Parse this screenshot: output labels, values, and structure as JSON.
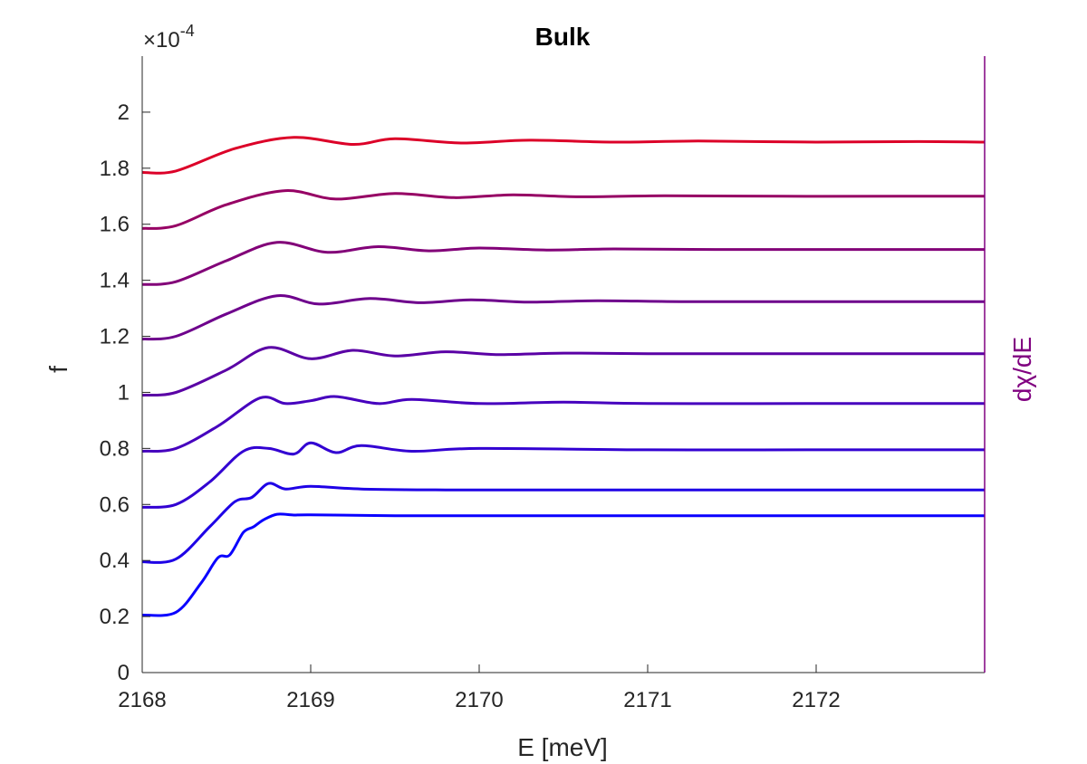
{
  "chart_data": {
    "type": "line",
    "title": "Bulk",
    "xlabel": "E [meV]",
    "ylabel": "f",
    "right_label": "dχ/dE",
    "exponent_label": "×10",
    "exponent_power": "-4",
    "xlim": [
      2168,
      2173
    ],
    "ylim": [
      0,
      2.2
    ],
    "xticks": [
      2168,
      2169,
      2170,
      2171,
      2172
    ],
    "xtick_labels": [
      "2168",
      "2169",
      "2170",
      "2171",
      "2172"
    ],
    "yticks": [
      0,
      0.2,
      0.4,
      0.6,
      0.8,
      1,
      1.2,
      1.4,
      1.6,
      1.8,
      2
    ],
    "ytick_labels": [
      "0",
      "0.2",
      "0.4",
      "0.6",
      "0.8",
      "1",
      "1.2",
      "1.4",
      "1.6",
      "1.8",
      "2"
    ],
    "grid": false,
    "right_axis_color": "#800080",
    "series": [
      {
        "color": "#0a00ff",
        "x": [
          2168,
          2168.2,
          2168.35,
          2168.45,
          2168.52,
          2168.6,
          2168.66,
          2168.72,
          2168.8,
          2168.9,
          2169.0,
          2169.5,
          2170,
          2172,
          2173
        ],
        "values": [
          0.205,
          0.215,
          0.32,
          0.41,
          0.42,
          0.5,
          0.52,
          0.545,
          0.565,
          0.562,
          0.563,
          0.56,
          0.56,
          0.56,
          0.56
        ]
      },
      {
        "color": "#1e00e6",
        "x": [
          2168,
          2168.2,
          2168.4,
          2168.55,
          2168.65,
          2168.75,
          2168.85,
          2169.0,
          2169.3,
          2169.8,
          2170.5,
          2172,
          2173
        ],
        "values": [
          0.395,
          0.405,
          0.52,
          0.61,
          0.625,
          0.675,
          0.655,
          0.665,
          0.655,
          0.652,
          0.652,
          0.652,
          0.652
        ]
      },
      {
        "color": "#3200d2",
        "x": [
          2168,
          2168.2,
          2168.4,
          2168.6,
          2168.75,
          2168.9,
          2169.0,
          2169.15,
          2169.3,
          2169.6,
          2170,
          2171,
          2172,
          2173
        ],
        "values": [
          0.59,
          0.6,
          0.68,
          0.79,
          0.8,
          0.78,
          0.82,
          0.785,
          0.81,
          0.79,
          0.8,
          0.795,
          0.795,
          0.795
        ]
      },
      {
        "color": "#4600be",
        "x": [
          2168,
          2168.2,
          2168.45,
          2168.7,
          2168.85,
          2169.0,
          2169.15,
          2169.4,
          2169.6,
          2170,
          2170.5,
          2171,
          2172,
          2173
        ],
        "values": [
          0.79,
          0.8,
          0.88,
          0.98,
          0.96,
          0.97,
          0.985,
          0.96,
          0.975,
          0.96,
          0.965,
          0.96,
          0.96,
          0.96
        ]
      },
      {
        "color": "#5a00a5",
        "x": [
          2168,
          2168.2,
          2168.5,
          2168.75,
          2169.0,
          2169.25,
          2169.5,
          2169.8,
          2170.1,
          2170.5,
          2171,
          2172,
          2173
        ],
        "values": [
          0.99,
          1.0,
          1.08,
          1.16,
          1.12,
          1.15,
          1.13,
          1.145,
          1.135,
          1.14,
          1.138,
          1.138,
          1.138
        ]
      },
      {
        "color": "#6e008c",
        "x": [
          2168,
          2168.2,
          2168.5,
          2168.8,
          2169.05,
          2169.35,
          2169.65,
          2169.95,
          2170.3,
          2170.7,
          2171.2,
          2172,
          2173
        ],
        "values": [
          1.19,
          1.2,
          1.28,
          1.345,
          1.315,
          1.335,
          1.32,
          1.33,
          1.322,
          1.327,
          1.324,
          1.324,
          1.324
        ]
      },
      {
        "color": "#820078",
        "x": [
          2168,
          2168.2,
          2168.5,
          2168.8,
          2169.1,
          2169.4,
          2169.7,
          2170.0,
          2170.4,
          2170.8,
          2171.4,
          2172.2,
          2173
        ],
        "values": [
          1.385,
          1.395,
          1.47,
          1.535,
          1.5,
          1.52,
          1.505,
          1.515,
          1.508,
          1.512,
          1.51,
          1.51,
          1.51
        ]
      },
      {
        "color": "#960064",
        "x": [
          2168,
          2168.2,
          2168.5,
          2168.85,
          2169.15,
          2169.5,
          2169.85,
          2170.2,
          2170.6,
          2171.1,
          2171.8,
          2172.5,
          2173
        ],
        "values": [
          1.585,
          1.595,
          1.67,
          1.72,
          1.69,
          1.71,
          1.695,
          1.705,
          1.698,
          1.702,
          1.7,
          1.7,
          1.7
        ]
      },
      {
        "color": "#dc0028",
        "x": [
          2168,
          2168.2,
          2168.55,
          2168.9,
          2169.25,
          2169.5,
          2169.9,
          2170.3,
          2170.8,
          2171.3,
          2172,
          2172.6,
          2173
        ],
        "values": [
          1.785,
          1.79,
          1.87,
          1.91,
          1.885,
          1.905,
          1.89,
          1.9,
          1.893,
          1.897,
          1.893,
          1.895,
          1.893
        ]
      }
    ]
  }
}
